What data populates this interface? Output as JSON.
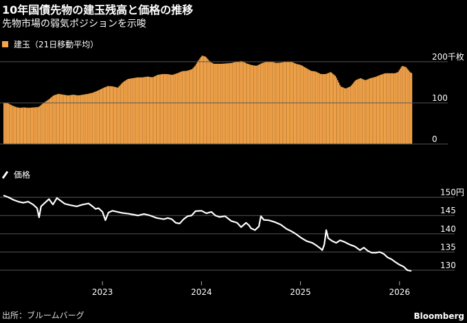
{
  "title": "10年国債先物の建玉残高と価格の推移",
  "subtitle": "先物市場の弱気ポジションを示唆",
  "source": "出所：ブルームバーグ",
  "brand": "Bloomberg",
  "colors": {
    "bars": "#f5a54a",
    "line": "#ffffff",
    "grid": "#555555",
    "background": "#000000"
  },
  "chart_data": [
    {
      "type": "bar",
      "legend": "建玉（21日移動平均）",
      "unit_label": "千枚",
      "ylim": [
        0,
        200
      ],
      "y_ticks": [
        0,
        100,
        200
      ],
      "y_tick_labels": [
        "0",
        "100",
        "200千枚"
      ],
      "x_domain": [
        2022.0,
        2026.3
      ],
      "points": [
        [
          2022.0,
          101
        ],
        [
          2022.04,
          99
        ],
        [
          2022.08,
          94
        ],
        [
          2022.12,
          90
        ],
        [
          2022.16,
          88
        ],
        [
          2022.2,
          89
        ],
        [
          2022.25,
          88
        ],
        [
          2022.3,
          89
        ],
        [
          2022.35,
          90
        ],
        [
          2022.4,
          100
        ],
        [
          2022.45,
          108
        ],
        [
          2022.5,
          118
        ],
        [
          2022.55,
          122
        ],
        [
          2022.6,
          120
        ],
        [
          2022.65,
          118
        ],
        [
          2022.7,
          120
        ],
        [
          2022.75,
          118
        ],
        [
          2022.8,
          120
        ],
        [
          2022.85,
          122
        ],
        [
          2022.9,
          125
        ],
        [
          2022.95,
          130
        ],
        [
          2023.0,
          136
        ],
        [
          2023.05,
          141
        ],
        [
          2023.1,
          140
        ],
        [
          2023.15,
          137
        ],
        [
          2023.2,
          150
        ],
        [
          2023.25,
          158
        ],
        [
          2023.3,
          160
        ],
        [
          2023.35,
          162
        ],
        [
          2023.4,
          162
        ],
        [
          2023.45,
          164
        ],
        [
          2023.5,
          162
        ],
        [
          2023.55,
          168
        ],
        [
          2023.6,
          170
        ],
        [
          2023.65,
          170
        ],
        [
          2023.7,
          168
        ],
        [
          2023.75,
          172
        ],
        [
          2023.8,
          177
        ],
        [
          2023.85,
          178
        ],
        [
          2023.9,
          182
        ],
        [
          2023.93,
          190
        ],
        [
          2023.96,
          202
        ],
        [
          2024.0,
          215
        ],
        [
          2024.04,
          212
        ],
        [
          2024.08,
          200
        ],
        [
          2024.12,
          195
        ],
        [
          2024.16,
          195
        ],
        [
          2024.2,
          195
        ],
        [
          2024.25,
          196
        ],
        [
          2024.3,
          197
        ],
        [
          2024.35,
          200
        ],
        [
          2024.4,
          202
        ],
        [
          2024.45,
          196
        ],
        [
          2024.5,
          192
        ],
        [
          2024.55,
          190
        ],
        [
          2024.6,
          196
        ],
        [
          2024.65,
          200
        ],
        [
          2024.7,
          200
        ],
        [
          2024.75,
          197
        ],
        [
          2024.8,
          198
        ],
        [
          2024.85,
          200
        ],
        [
          2024.9,
          200
        ],
        [
          2024.95,
          195
        ],
        [
          2025.0,
          192
        ],
        [
          2025.05,
          185
        ],
        [
          2025.1,
          178
        ],
        [
          2025.15,
          176
        ],
        [
          2025.2,
          170
        ],
        [
          2025.25,
          170
        ],
        [
          2025.3,
          175
        ],
        [
          2025.35,
          165
        ],
        [
          2025.4,
          140
        ],
        [
          2025.45,
          135
        ],
        [
          2025.5,
          140
        ],
        [
          2025.55,
          155
        ],
        [
          2025.6,
          160
        ],
        [
          2025.65,
          155
        ],
        [
          2025.7,
          160
        ],
        [
          2025.75,
          163
        ],
        [
          2025.8,
          168
        ],
        [
          2025.85,
          172
        ],
        [
          2025.9,
          172
        ],
        [
          2025.95,
          172
        ],
        [
          2025.98,
          175
        ],
        [
          2026.02,
          190
        ],
        [
          2026.06,
          187
        ],
        [
          2026.1,
          175
        ],
        [
          2026.12,
          172
        ]
      ]
    },
    {
      "type": "line",
      "legend": "価格",
      "ylim": [
        127,
        152
      ],
      "y_ticks": [
        130,
        135,
        140,
        145,
        150
      ],
      "y_tick_labels": [
        "130",
        "135",
        "140",
        "145",
        "150円"
      ],
      "x_ticks": [
        2023,
        2024,
        2025,
        2026
      ],
      "x_tick_labels": [
        "2023",
        "2024",
        "2025",
        "2026"
      ],
      "points": [
        [
          2022.0,
          150.5
        ],
        [
          2022.05,
          150.0
        ],
        [
          2022.1,
          149.3
        ],
        [
          2022.15,
          148.8
        ],
        [
          2022.2,
          148.5
        ],
        [
          2022.25,
          148.8
        ],
        [
          2022.3,
          148.0
        ],
        [
          2022.34,
          147.0
        ],
        [
          2022.36,
          144.5
        ],
        [
          2022.38,
          147.5
        ],
        [
          2022.42,
          148.5
        ],
        [
          2022.46,
          149.5
        ],
        [
          2022.5,
          148.0
        ],
        [
          2022.54,
          149.8
        ],
        [
          2022.58,
          149.0
        ],
        [
          2022.62,
          148.2
        ],
        [
          2022.68,
          147.8
        ],
        [
          2022.74,
          147.5
        ],
        [
          2022.8,
          148.0
        ],
        [
          2022.86,
          148.3
        ],
        [
          2022.9,
          147.5
        ],
        [
          2022.93,
          146.8
        ],
        [
          2022.96,
          147.0
        ],
        [
          2023.0,
          146.0
        ],
        [
          2023.03,
          143.7
        ],
        [
          2023.06,
          145.8
        ],
        [
          2023.1,
          146.3
        ],
        [
          2023.15,
          146.0
        ],
        [
          2023.2,
          145.7
        ],
        [
          2023.26,
          145.5
        ],
        [
          2023.3,
          145.3
        ],
        [
          2023.36,
          145.0
        ],
        [
          2023.42,
          145.4
        ],
        [
          2023.48,
          145.0
        ],
        [
          2023.55,
          144.3
        ],
        [
          2023.62,
          144.0
        ],
        [
          2023.66,
          144.3
        ],
        [
          2023.7,
          144.0
        ],
        [
          2023.74,
          143.0
        ],
        [
          2023.78,
          142.8
        ],
        [
          2023.82,
          144.0
        ],
        [
          2023.86,
          144.8
        ],
        [
          2023.9,
          145.0
        ],
        [
          2023.94,
          146.2
        ],
        [
          2024.0,
          146.3
        ],
        [
          2024.05,
          145.6
        ],
        [
          2024.1,
          146.0
        ],
        [
          2024.14,
          145.0
        ],
        [
          2024.18,
          144.6
        ],
        [
          2024.24,
          144.8
        ],
        [
          2024.3,
          143.5
        ],
        [
          2024.36,
          143.0
        ],
        [
          2024.4,
          141.8
        ],
        [
          2024.45,
          143.0
        ],
        [
          2024.48,
          142.3
        ],
        [
          2024.5,
          141.5
        ],
        [
          2024.54,
          141.0
        ],
        [
          2024.58,
          142.0
        ],
        [
          2024.6,
          144.8
        ],
        [
          2024.63,
          143.8
        ],
        [
          2024.68,
          143.7
        ],
        [
          2024.74,
          143.2
        ],
        [
          2024.8,
          142.5
        ],
        [
          2024.86,
          141.3
        ],
        [
          2024.9,
          140.8
        ],
        [
          2024.95,
          140.0
        ],
        [
          2025.0,
          139.0
        ],
        [
          2025.06,
          138.0
        ],
        [
          2025.12,
          137.5
        ],
        [
          2025.16,
          136.8
        ],
        [
          2025.2,
          136.0
        ],
        [
          2025.22,
          135.5
        ],
        [
          2025.24,
          137.0
        ],
        [
          2025.26,
          141.0
        ],
        [
          2025.28,
          138.8
        ],
        [
          2025.32,
          138.0
        ],
        [
          2025.36,
          137.5
        ],
        [
          2025.4,
          138.2
        ],
        [
          2025.44,
          137.8
        ],
        [
          2025.5,
          137.0
        ],
        [
          2025.55,
          136.5
        ],
        [
          2025.6,
          135.5
        ],
        [
          2025.64,
          136.2
        ],
        [
          2025.68,
          135.3
        ],
        [
          2025.72,
          134.8
        ],
        [
          2025.76,
          134.8
        ],
        [
          2025.8,
          135.0
        ],
        [
          2025.84,
          134.5
        ],
        [
          2025.88,
          133.5
        ],
        [
          2025.92,
          133.0
        ],
        [
          2025.96,
          132.2
        ],
        [
          2026.0,
          131.5
        ],
        [
          2026.04,
          131.0
        ],
        [
          2026.08,
          130.0
        ],
        [
          2026.12,
          129.8
        ]
      ]
    }
  ]
}
